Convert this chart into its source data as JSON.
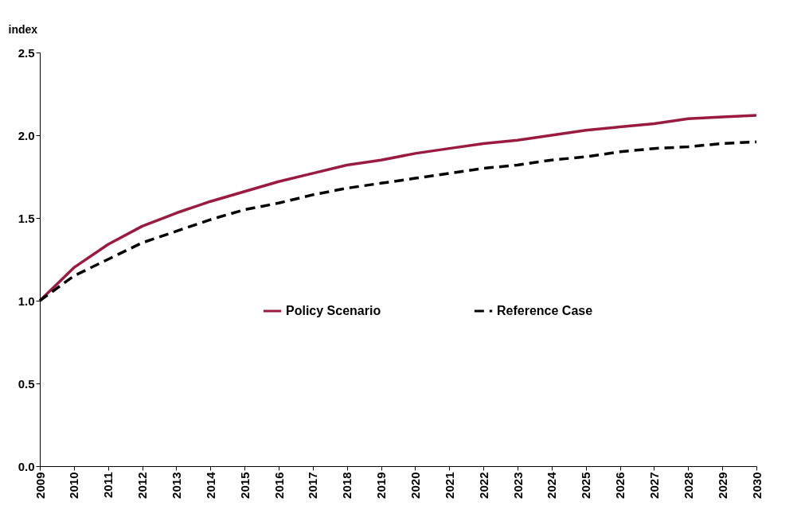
{
  "chart_data": {
    "type": "line",
    "ylabel": "index",
    "categories": [
      "2009",
      "2010",
      "2011",
      "2012",
      "2013",
      "2014",
      "2015",
      "2016",
      "2017",
      "2018",
      "2019",
      "2020",
      "2021",
      "2022",
      "2023",
      "2024",
      "2025",
      "2026",
      "2027",
      "2028",
      "2029",
      "2030"
    ],
    "ylim": [
      0,
      2.5
    ],
    "yticks": [
      {
        "value": 0,
        "label": "0.0"
      },
      {
        "value": 0.5,
        "label": "0.5"
      },
      {
        "value": 1,
        "label": "1.0"
      },
      {
        "value": 1.5,
        "label": "1.5"
      },
      {
        "value": 2,
        "label": "2.0"
      },
      {
        "value": 2.5,
        "label": "2.5"
      }
    ],
    "grid": false,
    "legend": "center",
    "marker": "none",
    "series": [
      {
        "name": "Policy Scenario",
        "color": "#9b1b40",
        "line_style": "solid",
        "values": [
          1.0,
          1.2,
          1.34,
          1.45,
          1.53,
          1.6,
          1.66,
          1.72,
          1.77,
          1.82,
          1.85,
          1.89,
          1.92,
          1.95,
          1.97,
          2.0,
          2.03,
          2.05,
          2.07,
          2.1,
          2.11,
          2.12
        ]
      },
      {
        "name": "Reference Case",
        "color": "#000000",
        "line_style": "dashed",
        "values": [
          1.0,
          1.15,
          1.25,
          1.35,
          1.42,
          1.49,
          1.55,
          1.59,
          1.64,
          1.68,
          1.71,
          1.74,
          1.77,
          1.8,
          1.82,
          1.85,
          1.87,
          1.9,
          1.92,
          1.93,
          1.95,
          1.96
        ]
      }
    ]
  }
}
